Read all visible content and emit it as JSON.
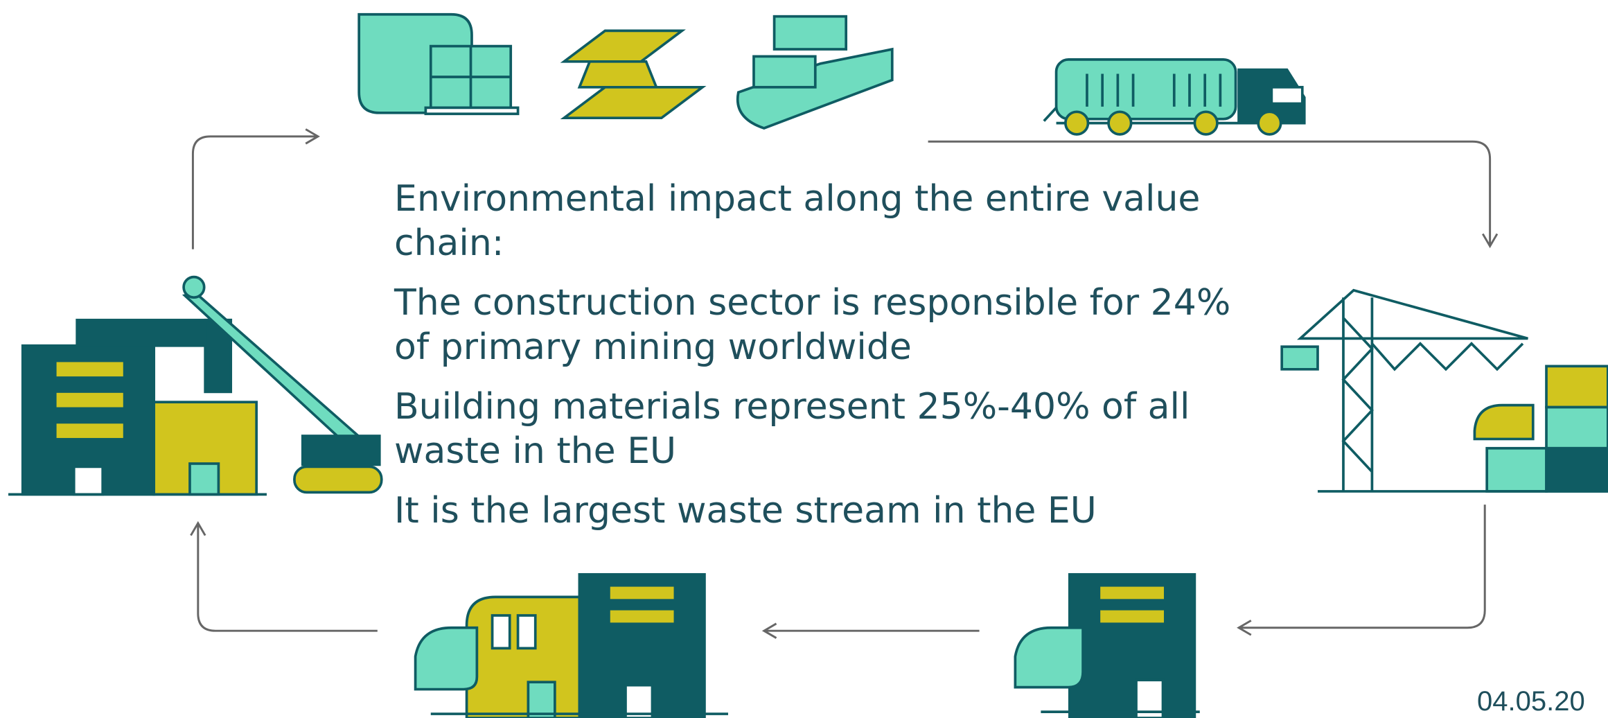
{
  "header": {
    "title": "Environmental impact along the entire value chain:"
  },
  "bullets": [
    "The construction sector is responsible for 24% of primary mining worldwide",
    "Building materials represent 25%-40% of all waste in the EU",
    "It is the largest waste stream in the EU"
  ],
  "footer": {
    "date": "04.05.20"
  }
}
